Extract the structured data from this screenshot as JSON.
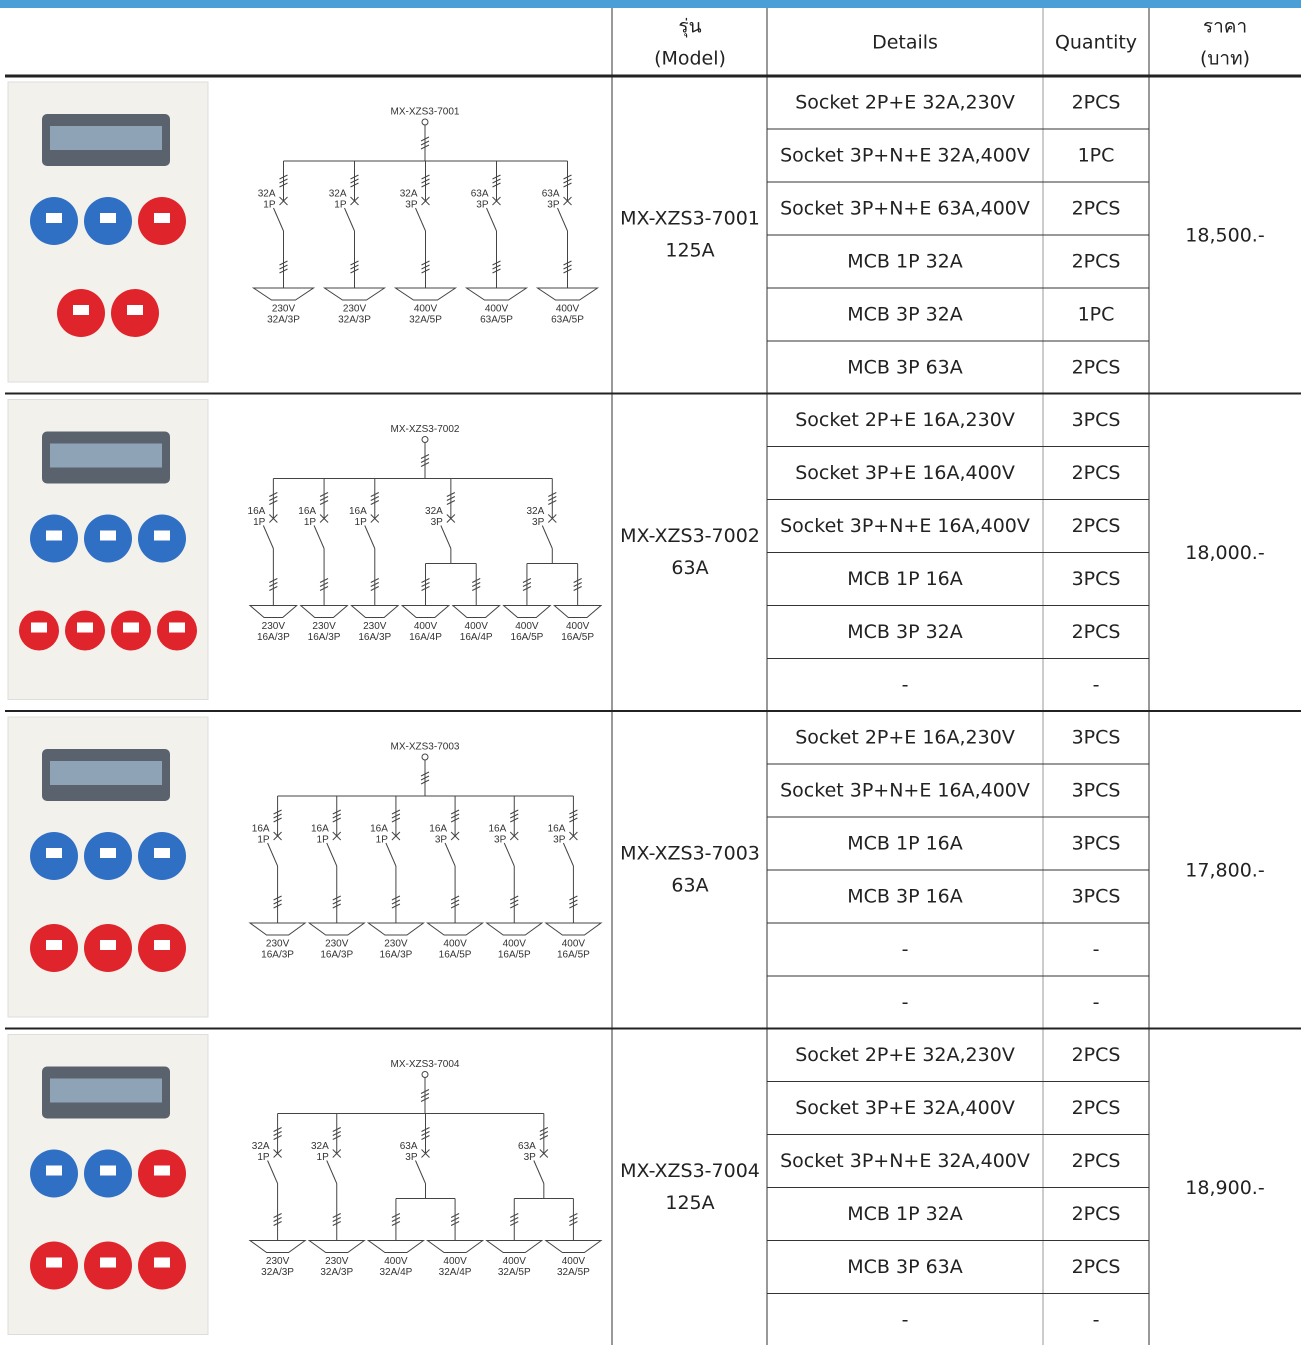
{
  "header": {
    "model": [
      "รุ่น",
      "(Model)"
    ],
    "details": "Details",
    "quantity": "Quantity",
    "price": [
      "ราคา",
      "(บาท)"
    ]
  },
  "products": [
    {
      "model": "MX-XZS3-7001",
      "rating": "125A",
      "price": "18,500.-",
      "items": [
        {
          "detail": "Socket 2P+E 32A,230V",
          "qty": "2PCS"
        },
        {
          "detail": "Socket 3P+N+E 32A,400V",
          "qty": "1PC"
        },
        {
          "detail": "Socket 3P+N+E 63A,400V",
          "qty": "2PCS"
        },
        {
          "detail": "MCB 1P 32A",
          "qty": "2PCS"
        },
        {
          "detail": "MCB 3P 32A",
          "qty": "1PC"
        },
        {
          "detail": "MCB 3P 63A",
          "qty": "2PCS"
        }
      ],
      "diagram": {
        "title": "MX-XZS3-7001",
        "breakers": [
          {
            "rating": [
              "32A",
              "1P"
            ],
            "outlets": [
              [
                "230V",
                "32A/3P"
              ]
            ]
          },
          {
            "rating": [
              "32A",
              "1P"
            ],
            "outlets": [
              [
                "230V",
                "32A/3P"
              ]
            ]
          },
          {
            "rating": [
              "32A",
              "3P"
            ],
            "outlets": [
              [
                "400V",
                "32A/5P"
              ]
            ]
          },
          {
            "rating": [
              "63A",
              "3P"
            ],
            "outlets": [
              [
                "400V",
                "63A/5P"
              ]
            ]
          },
          {
            "rating": [
              "63A",
              "3P"
            ],
            "outlets": [
              [
                "400V",
                "63A/5P"
              ]
            ]
          }
        ]
      }
    },
    {
      "model": "MX-XZS3-7002",
      "rating": "63A",
      "price": "18,000.-",
      "items": [
        {
          "detail": "Socket 2P+E 16A,230V",
          "qty": "3PCS"
        },
        {
          "detail": "Socket 3P+E 16A,400V",
          "qty": "2PCS"
        },
        {
          "detail": "Socket 3P+N+E 16A,400V",
          "qty": "2PCS"
        },
        {
          "detail": "MCB 1P 16A",
          "qty": "3PCS"
        },
        {
          "detail": "MCB 3P 32A",
          "qty": "2PCS"
        },
        {
          "detail": "-",
          "qty": "-"
        }
      ],
      "diagram": {
        "title": "MX-XZS3-7002",
        "breakers": [
          {
            "rating": [
              "16A",
              "1P"
            ],
            "outlets": [
              [
                "230V",
                "16A/3P"
              ]
            ]
          },
          {
            "rating": [
              "16A",
              "1P"
            ],
            "outlets": [
              [
                "230V",
                "16A/3P"
              ]
            ]
          },
          {
            "rating": [
              "16A",
              "1P"
            ],
            "outlets": [
              [
                "230V",
                "16A/3P"
              ]
            ]
          },
          {
            "rating": [
              "32A",
              "3P"
            ],
            "outlets": [
              [
                "400V",
                "16A/4P"
              ],
              [
                "400V",
                "16A/4P"
              ]
            ]
          },
          {
            "rating": [
              "32A",
              "3P"
            ],
            "outlets": [
              [
                "400V",
                "16A/5P"
              ],
              [
                "400V",
                "16A/5P"
              ]
            ]
          }
        ]
      }
    },
    {
      "model": "MX-XZS3-7003",
      "rating": "63A",
      "price": "17,800.-",
      "items": [
        {
          "detail": "Socket 2P+E 16A,230V",
          "qty": "3PCS"
        },
        {
          "detail": "Socket 3P+N+E 16A,400V",
          "qty": "3PCS"
        },
        {
          "detail": "MCB 1P 16A",
          "qty": "3PCS"
        },
        {
          "detail": "MCB 3P 16A",
          "qty": "3PCS"
        },
        {
          "detail": "-",
          "qty": "-"
        },
        {
          "detail": "-",
          "qty": "-"
        }
      ],
      "diagram": {
        "title": "MX-XZS3-7003",
        "breakers": [
          {
            "rating": [
              "16A",
              "1P"
            ],
            "outlets": [
              [
                "230V",
                "16A/3P"
              ]
            ]
          },
          {
            "rating": [
              "16A",
              "1P"
            ],
            "outlets": [
              [
                "230V",
                "16A/3P"
              ]
            ]
          },
          {
            "rating": [
              "16A",
              "1P"
            ],
            "outlets": [
              [
                "230V",
                "16A/3P"
              ]
            ]
          },
          {
            "rating": [
              "16A",
              "3P"
            ],
            "outlets": [
              [
                "400V",
                "16A/5P"
              ]
            ]
          },
          {
            "rating": [
              "16A",
              "3P"
            ],
            "outlets": [
              [
                "400V",
                "16A/5P"
              ]
            ]
          },
          {
            "rating": [
              "16A",
              "3P"
            ],
            "outlets": [
              [
                "400V",
                "16A/5P"
              ]
            ]
          }
        ]
      }
    },
    {
      "model": "MX-XZS3-7004",
      "rating": "125A",
      "price": "18,900.-",
      "items": [
        {
          "detail": "Socket 2P+E 32A,230V",
          "qty": "2PCS"
        },
        {
          "detail": "Socket 3P+E 32A,400V",
          "qty": "2PCS"
        },
        {
          "detail": "Socket 3P+N+E 32A,400V",
          "qty": "2PCS"
        },
        {
          "detail": "MCB 1P 32A",
          "qty": "2PCS"
        },
        {
          "detail": "MCB 3P 63A",
          "qty": "2PCS"
        },
        {
          "detail": "-",
          "qty": "-"
        }
      ],
      "diagram": {
        "title": "MX-XZS3-7004",
        "breakers": [
          {
            "rating": [
              "32A",
              "1P"
            ],
            "outlets": [
              [
                "230V",
                "32A/3P"
              ]
            ]
          },
          {
            "rating": [
              "32A",
              "1P"
            ],
            "outlets": [
              [
                "230V",
                "32A/3P"
              ]
            ]
          },
          {
            "rating": [
              "63A",
              "3P"
            ],
            "outlets": [
              [
                "400V",
                "32A/4P"
              ],
              [
                "400V",
                "32A/4P"
              ]
            ]
          },
          {
            "rating": [
              "63A",
              "3P"
            ],
            "outlets": [
              [
                "400V",
                "32A/5P"
              ],
              [
                "400V",
                "32A/5P"
              ]
            ]
          }
        ]
      }
    }
  ]
}
